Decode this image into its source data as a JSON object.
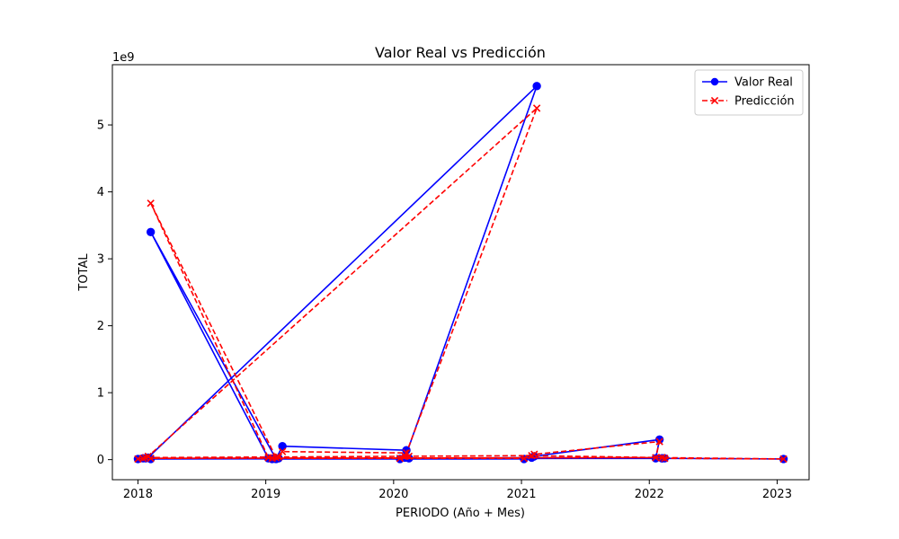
{
  "chart_data": {
    "type": "line",
    "title": "Valor Real vs Predicción",
    "xlabel": "PERIODO (Año + Mes)",
    "ylabel": "TOTAL",
    "y_scale_label": "1e9",
    "x_range": [
      2017.8,
      2023.25
    ],
    "ylim": [
      -0.3,
      5.9
    ],
    "x_ticks": [
      "2018",
      "2019",
      "2020",
      "2021",
      "2022",
      "2023"
    ],
    "y_ticks": [
      "0",
      "1",
      "2",
      "3",
      "4",
      "5"
    ],
    "grid": false,
    "legend_position": "top-right",
    "colors": {
      "real": "#0000ff",
      "pred": "#ff0000",
      "axis": "#000000"
    },
    "series": [
      {
        "name": "Valor Real",
        "style": "solid-circle",
        "color": "#0000ff",
        "x": [
          2018.0,
          2018.04,
          2018.08,
          2021.12,
          2020.09,
          2020.05,
          2020.1,
          2019.13,
          2019.08,
          2018.1,
          2019.02,
          2019.05,
          2021.02,
          2021.1,
          2022.08,
          2022.05,
          2018.1,
          2022.1,
          2022.12,
          2023.05,
          2022.1,
          2021.08,
          2020.12,
          2019.1,
          2018.06
        ],
        "y": [
          0.01,
          0.02,
          0.03,
          5.58,
          0.03,
          0.01,
          0.14,
          0.2,
          0.01,
          3.4,
          0.02,
          0.01,
          0.01,
          0.05,
          0.3,
          0.02,
          0.01,
          0.02,
          0.02,
          0.01,
          0.02,
          0.03,
          0.02,
          0.02,
          0.02
        ]
      },
      {
        "name": "Predicción",
        "style": "dashed-x",
        "color": "#ff0000",
        "x": [
          2018.0,
          2018.04,
          2018.08,
          2021.12,
          2020.09,
          2020.05,
          2020.1,
          2019.13,
          2019.08,
          2018.1,
          2019.02,
          2019.05,
          2021.02,
          2021.1,
          2022.08,
          2022.05,
          2018.1,
          2022.1,
          2022.12,
          2023.05,
          2022.1,
          2021.08,
          2020.12,
          2019.1,
          2018.06
        ],
        "y": [
          0.01,
          0.02,
          0.05,
          5.25,
          0.05,
          0.02,
          0.1,
          0.12,
          0.03,
          3.83,
          0.03,
          0.02,
          0.02,
          0.08,
          0.27,
          0.03,
          0.02,
          0.03,
          0.02,
          0.01,
          0.03,
          0.06,
          0.05,
          0.04,
          0.03
        ]
      }
    ]
  }
}
